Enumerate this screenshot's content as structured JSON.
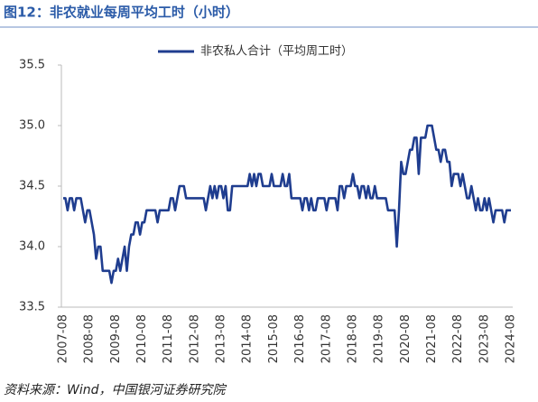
{
  "chart_data": {
    "type": "line",
    "title": "图12：非农就业每周平均工时（小时）",
    "source": "资料来源：Wind，中国银河证券研究院",
    "categories": [
      "2007-08",
      null,
      null,
      null,
      null,
      null,
      null,
      null,
      null,
      null,
      null,
      null,
      "2008-08",
      null,
      null,
      null,
      null,
      null,
      null,
      null,
      null,
      null,
      null,
      null,
      "2009-08",
      null,
      null,
      null,
      null,
      null,
      null,
      null,
      null,
      null,
      null,
      null,
      "2010-08",
      null,
      null,
      null,
      null,
      null,
      null,
      null,
      null,
      null,
      null,
      null,
      "2011-08",
      null,
      null,
      null,
      null,
      null,
      null,
      null,
      null,
      null,
      null,
      null,
      "2012-08",
      null,
      null,
      null,
      null,
      null,
      null,
      null,
      null,
      null,
      null,
      null,
      "2013-08",
      null,
      null,
      null,
      null,
      null,
      null,
      null,
      null,
      null,
      null,
      null,
      "2014-08",
      null,
      null,
      null,
      null,
      null,
      null,
      null,
      null,
      null,
      null,
      null,
      "2015-08",
      null,
      null,
      null,
      null,
      null,
      null,
      null,
      null,
      null,
      null,
      null,
      "2016-08",
      null,
      null,
      null,
      null,
      null,
      null,
      null,
      null,
      null,
      null,
      null,
      "2017-08",
      null,
      null,
      null,
      null,
      null,
      null,
      null,
      null,
      null,
      null,
      null,
      "2018-08",
      null,
      null,
      null,
      null,
      null,
      null,
      null,
      null,
      null,
      null,
      null,
      "2019-08",
      null,
      null,
      null,
      null,
      null,
      null,
      null,
      null,
      null,
      null,
      null,
      "2020-08",
      null,
      null,
      null,
      null,
      null,
      null,
      null,
      null,
      null,
      null,
      null,
      "2021-08",
      null,
      null,
      null,
      null,
      null,
      null,
      null,
      null,
      null,
      null,
      null,
      "2022-08",
      null,
      null,
      null,
      null,
      null,
      null,
      null,
      null,
      null,
      null,
      null,
      "2023-08",
      null,
      null,
      null,
      null,
      null,
      null,
      null,
      null,
      null,
      null,
      null,
      "2024-08"
    ],
    "series": [
      {
        "name": "非农私人合计（平均周工时）",
        "color": "#1f3d8f",
        "values": [
          34.4,
          34.4,
          34.3,
          34.4,
          34.4,
          34.3,
          34.4,
          34.4,
          34.4,
          34.3,
          34.2,
          34.3,
          34.3,
          34.2,
          34.1,
          33.9,
          34.0,
          34.0,
          33.8,
          33.8,
          33.8,
          33.8,
          33.7,
          33.8,
          33.8,
          33.9,
          33.8,
          33.9,
          34.0,
          33.8,
          34.0,
          34.1,
          34.1,
          34.2,
          34.2,
          34.1,
          34.2,
          34.2,
          34.3,
          34.3,
          34.3,
          34.3,
          34.3,
          34.2,
          34.3,
          34.3,
          34.3,
          34.3,
          34.3,
          34.4,
          34.4,
          34.3,
          34.4,
          34.5,
          34.5,
          34.5,
          34.4,
          34.4,
          34.4,
          34.4,
          34.4,
          34.4,
          34.4,
          34.4,
          34.4,
          34.3,
          34.4,
          34.5,
          34.4,
          34.5,
          34.4,
          34.5,
          34.5,
          34.4,
          34.5,
          34.3,
          34.3,
          34.5,
          34.5,
          34.5,
          34.5,
          34.5,
          34.5,
          34.5,
          34.5,
          34.6,
          34.5,
          34.6,
          34.5,
          34.6,
          34.6,
          34.5,
          34.5,
          34.5,
          34.5,
          34.6,
          34.5,
          34.5,
          34.5,
          34.5,
          34.6,
          34.5,
          34.5,
          34.6,
          34.4,
          34.4,
          34.4,
          34.4,
          34.4,
          34.3,
          34.4,
          34.4,
          34.3,
          34.4,
          34.3,
          34.3,
          34.4,
          34.4,
          34.4,
          34.4,
          34.3,
          34.4,
          34.4,
          34.4,
          34.4,
          34.3,
          34.5,
          34.5,
          34.4,
          34.5,
          34.5,
          34.5,
          34.6,
          34.5,
          34.5,
          34.4,
          34.5,
          34.5,
          34.4,
          34.5,
          34.4,
          34.4,
          34.5,
          34.4,
          34.4,
          34.4,
          34.4,
          34.4,
          34.3,
          34.3,
          34.3,
          34.3,
          34.0,
          34.3,
          34.7,
          34.6,
          34.6,
          34.7,
          34.8,
          34.8,
          34.9,
          34.9,
          34.6,
          34.9,
          34.9,
          34.9,
          35.0,
          35.0,
          35.0,
          34.9,
          34.8,
          34.8,
          34.7,
          34.8,
          34.8,
          34.7,
          34.7,
          34.5,
          34.6,
          34.6,
          34.6,
          34.5,
          34.6,
          34.5,
          34.4,
          34.4,
          34.5,
          34.4,
          34.3,
          34.4,
          34.3,
          34.3,
          34.4,
          34.3,
          34.4,
          34.3,
          34.2,
          34.3,
          34.3,
          34.3,
          34.3,
          34.2,
          34.3,
          34.3,
          34.3
        ]
      }
    ],
    "ylim": [
      33.5,
      35.5
    ],
    "yticks": [
      {
        "value": 33.5,
        "label": "33.5"
      },
      {
        "value": 34,
        "label": "34.0"
      },
      {
        "value": 34.5,
        "label": "34.5"
      },
      {
        "value": 35,
        "label": "35.0"
      },
      {
        "value": 35.5,
        "label": "35.5"
      }
    ],
    "grid": false,
    "legend": "top"
  }
}
